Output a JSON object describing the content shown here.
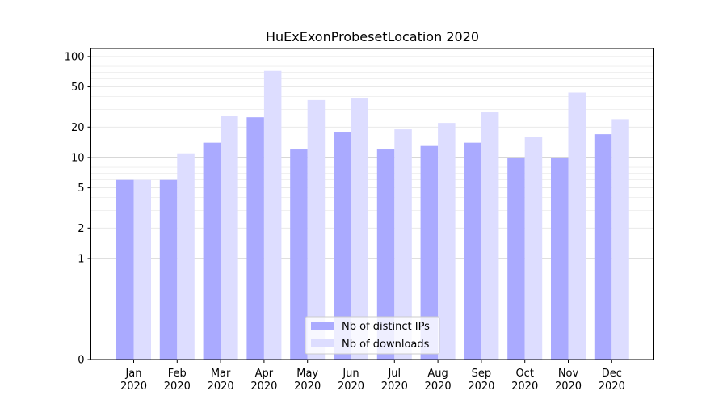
{
  "chart_data": {
    "type": "bar",
    "title": "HuExExonProbesetLocation 2020",
    "xlabel": "",
    "ylabel": "",
    "yscale": "symlog",
    "ylim": [
      0,
      120
    ],
    "yticks": [
      0,
      1,
      2,
      5,
      10,
      20,
      50,
      100
    ],
    "ytick_labels": [
      "0",
      "1",
      "2",
      "5",
      "10",
      "20",
      "50",
      "100"
    ],
    "categories": [
      "Jan\n2020",
      "Feb\n2020",
      "Mar\n2020",
      "Apr\n2020",
      "May\n2020",
      "Jun\n2020",
      "Jul\n2020",
      "Aug\n2020",
      "Sep\n2020",
      "Oct\n2020",
      "Nov\n2020",
      "Dec\n2020"
    ],
    "series": [
      {
        "name": "Nb of distinct IPs",
        "color": "#aaaaff",
        "values": [
          6,
          6,
          14,
          25,
          12,
          18,
          12,
          13,
          14,
          10,
          10,
          17
        ]
      },
      {
        "name": "Nb of downloads",
        "color": "#ddddff",
        "values": [
          6,
          11,
          26,
          72,
          37,
          39,
          19,
          22,
          28,
          16,
          44,
          24
        ]
      }
    ],
    "legend": {
      "position": "bottom-center"
    },
    "grid": true
  }
}
